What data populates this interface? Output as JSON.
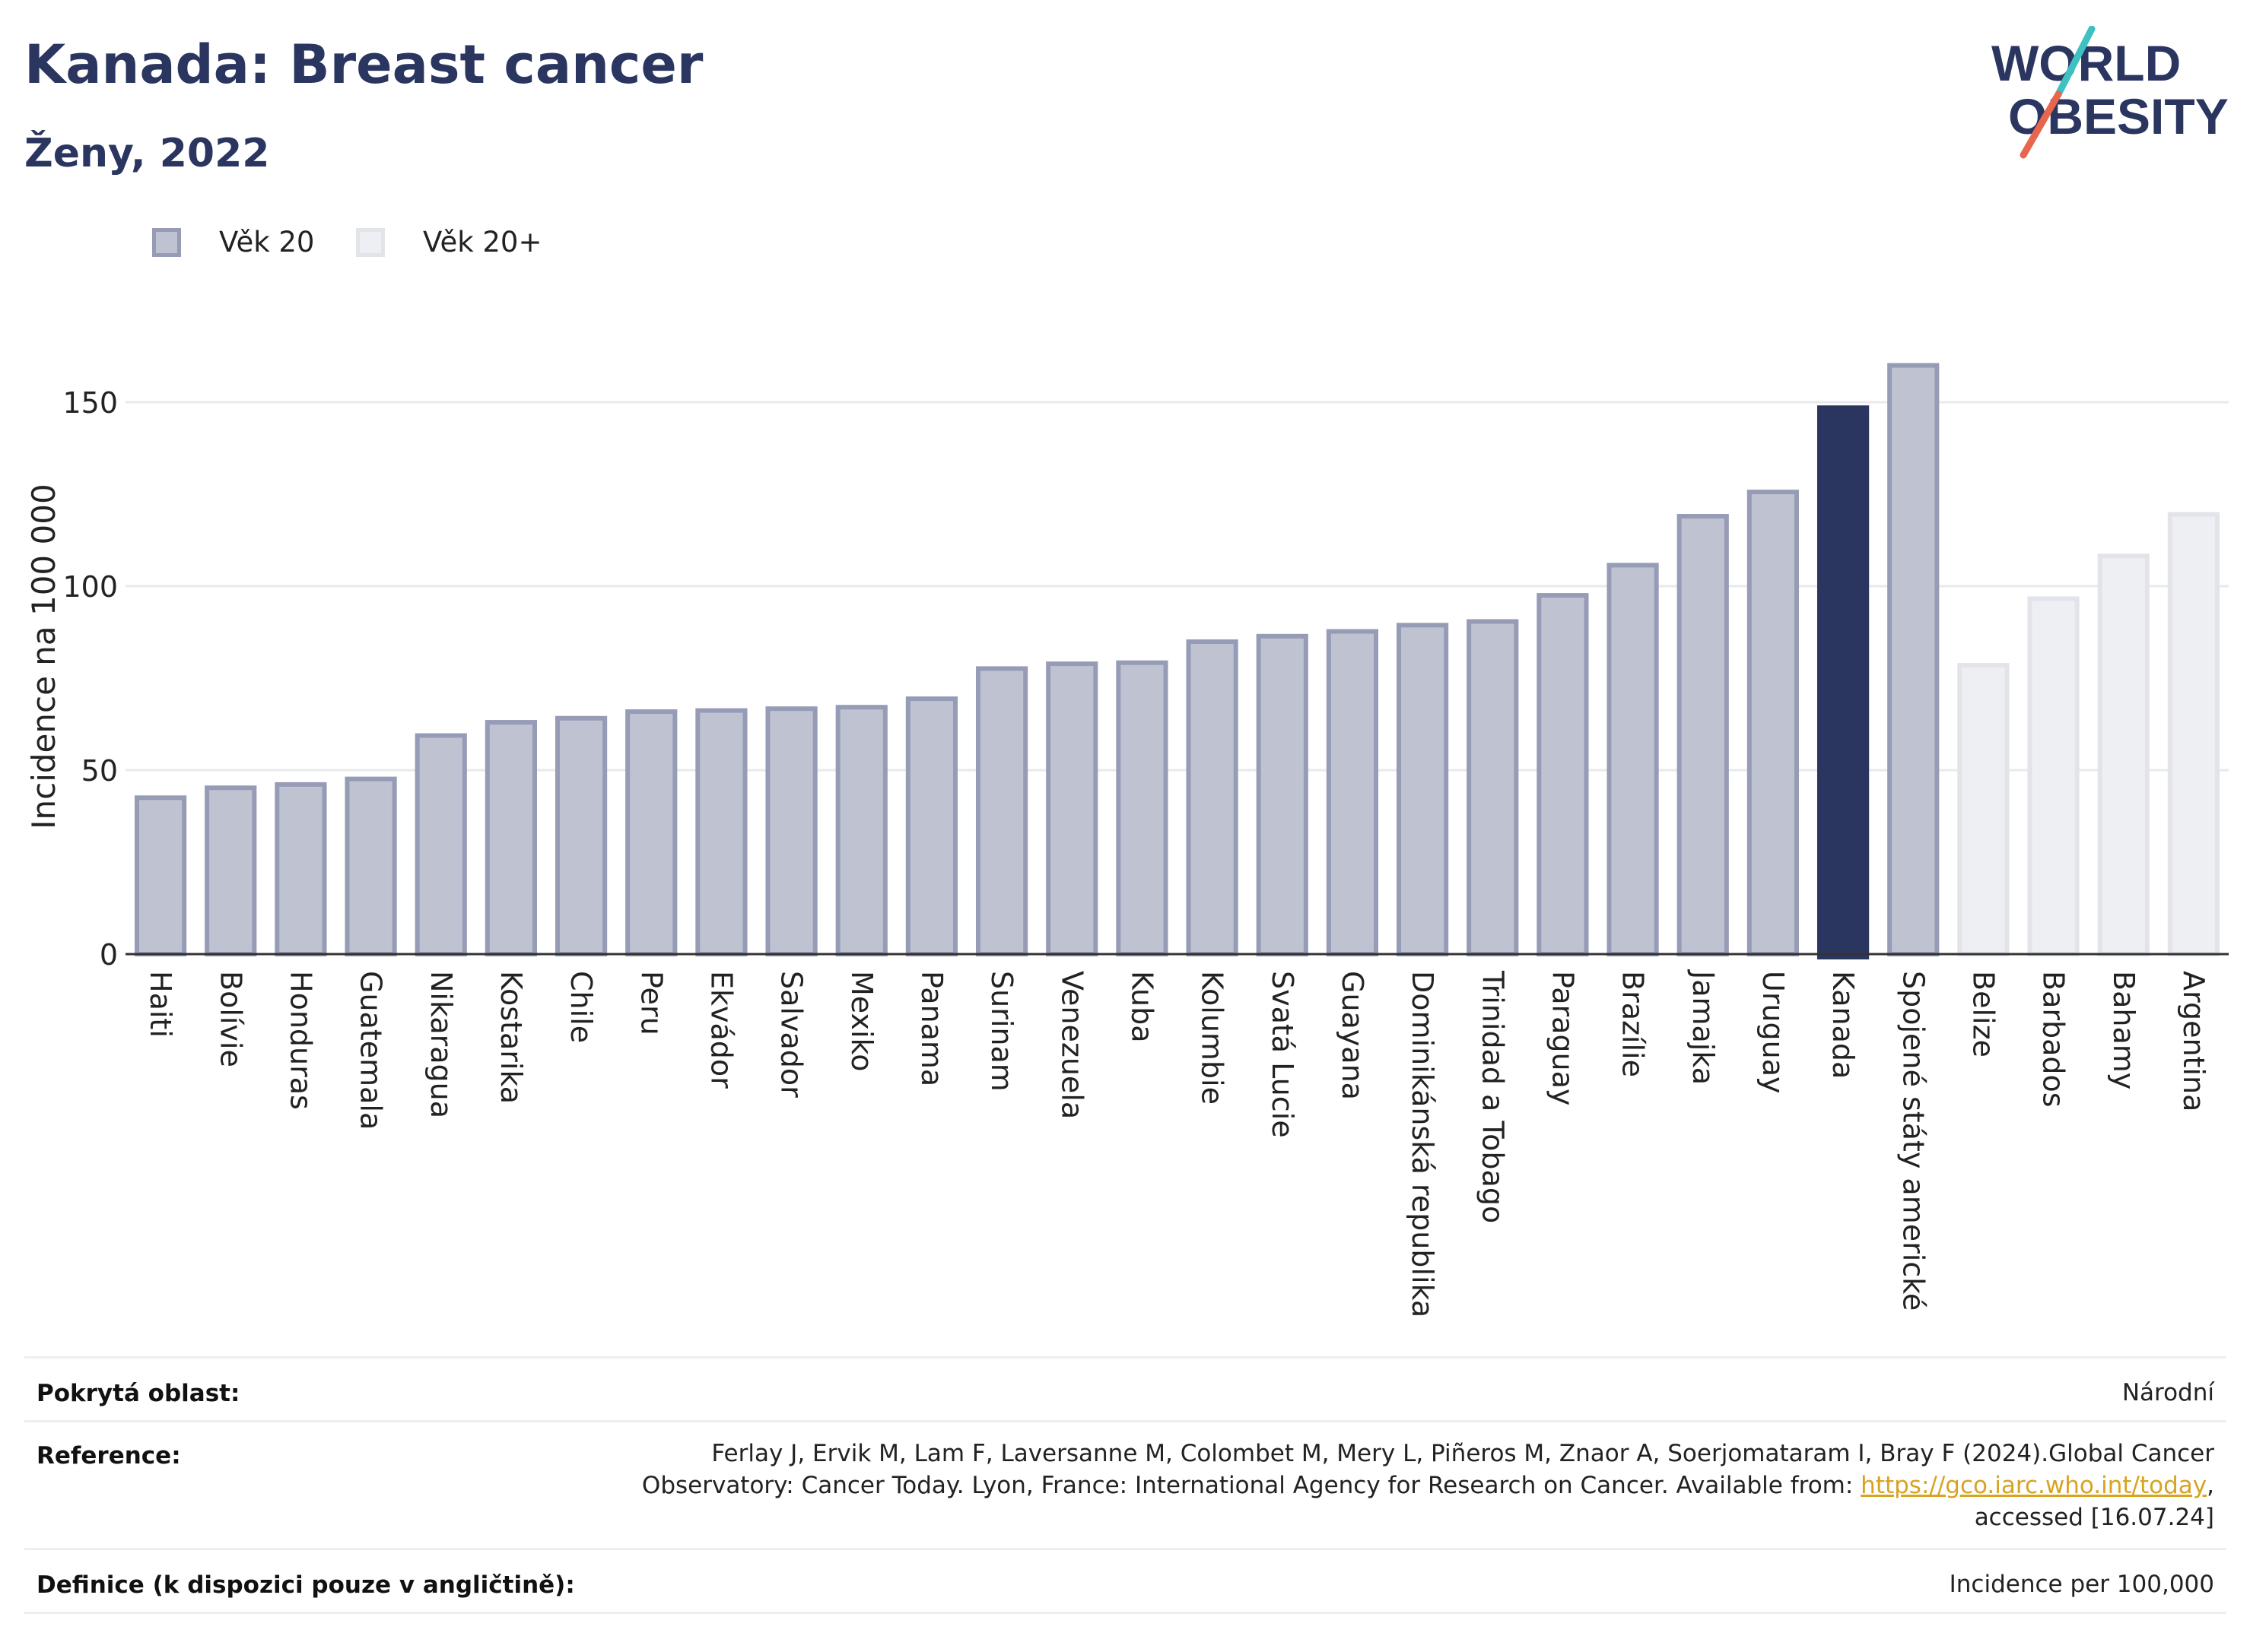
{
  "header": {
    "title": "Kanada: Breast cancer",
    "subtitle": "Ženy, 2022"
  },
  "logo": {
    "line1": "WORLD",
    "line2": "OBESITY",
    "colors": {
      "text": "#2a3560",
      "slash_top": "#3ec1c1",
      "slash_bottom": "#e8664e"
    }
  },
  "legend": [
    {
      "label": "Věk 20",
      "fill": "#bfc3d1",
      "stroke": "#969bb6"
    },
    {
      "label": "Věk 20+",
      "fill": "#eeeff3",
      "stroke": "#e2e4ea"
    }
  ],
  "chart_data": {
    "type": "bar",
    "ylabel": "Incidence na 100 000",
    "ylim": [
      0,
      170
    ],
    "yticks": [
      0,
      50,
      100,
      150
    ],
    "grid": true,
    "legend_position": "top-left",
    "highlight": "Kanada",
    "colors": {
      "age20_fill": "#bfc3d1",
      "age20_stroke": "#969bb6",
      "age20plus_fill": "#eeeff3",
      "age20plus_stroke": "#e2e4ea",
      "highlight": "#2a3560",
      "grid": "#e8eaee",
      "axis": "#333333"
    },
    "categories": [
      "Haiti",
      "Bolívie",
      "Honduras",
      "Guatemala",
      "Nikaragua",
      "Kostarika",
      "Chile",
      "Peru",
      "Ekvádor",
      "Salvador",
      "Mexiko",
      "Panama",
      "Surinam",
      "Venezuela",
      "Kuba",
      "Kolumbie",
      "Svatá Lucie",
      "Guayana",
      "Dominikánská republika",
      "Trinidad a Tobago",
      "Paraguay",
      "Brazílie",
      "Jamajka",
      "Uruguay",
      "Kanada",
      "Spojené státy americké",
      "Belize",
      "Barbados",
      "Bahamy",
      "Argentina"
    ],
    "values": [
      42.5,
      45.2,
      46.1,
      47.6,
      59.4,
      63.0,
      64.1,
      65.9,
      66.2,
      66.7,
      67.1,
      69.4,
      77.6,
      78.9,
      79.2,
      84.9,
      86.4,
      87.7,
      89.4,
      90.4,
      97.5,
      105.7,
      119.0,
      125.6,
      148.5,
      160.0,
      78.5,
      96.6,
      108.2,
      119.5
    ],
    "groups": [
      "Věk 20",
      "Věk 20",
      "Věk 20",
      "Věk 20",
      "Věk 20",
      "Věk 20",
      "Věk 20",
      "Věk 20",
      "Věk 20",
      "Věk 20",
      "Věk 20",
      "Věk 20",
      "Věk 20",
      "Věk 20",
      "Věk 20",
      "Věk 20",
      "Věk 20",
      "Věk 20",
      "Věk 20",
      "Věk 20",
      "Věk 20",
      "Věk 20",
      "Věk 20",
      "Věk 20",
      "Věk 20",
      "Věk 20",
      "Věk 20+",
      "Věk 20+",
      "Věk 20+",
      "Věk 20+"
    ]
  },
  "info": {
    "coverage_label": "Pokrytá oblast:",
    "coverage_value": "Národní",
    "reference_label": "Reference:",
    "reference_line1": "Ferlay J, Ervik M, Lam F, Laversanne M, Colombet M, Mery L, Piñeros M, Znaor A, Soerjomataram I, Bray F (2024).Global Cancer",
    "reference_line2_pre": "Observatory: Cancer Today. Lyon, France: International Agency for Research on Cancer. Available from: ",
    "reference_link": "https://gco.iarc.who.int/today",
    "reference_line2_post": ",",
    "reference_line3": "accessed [16.07.24]",
    "definition_label": "Definice (k dispozici pouze v angličtině):",
    "definition_value": "Incidence per 100,000"
  }
}
